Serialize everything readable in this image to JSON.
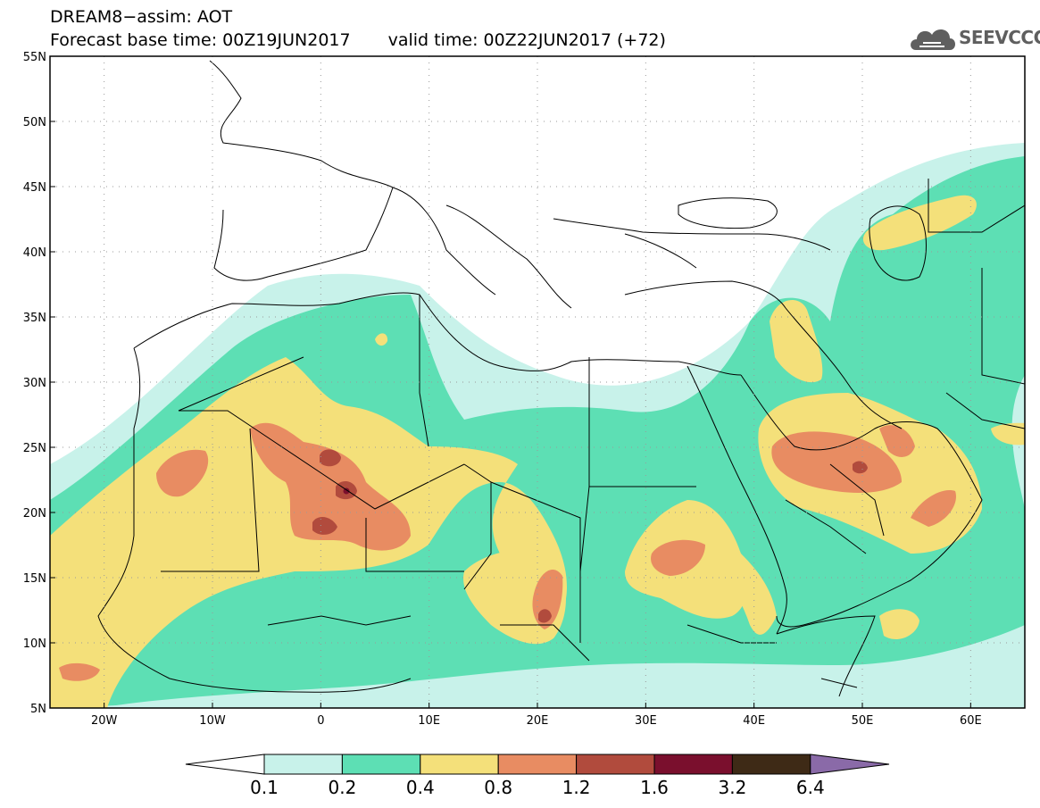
{
  "title": {
    "line1": "DREAM8−assim: AOT",
    "base_time": "Forecast base time: 00Z19JUN2017",
    "valid_time": "valid time: 00Z22JUN2017 (+72)"
  },
  "logo": {
    "text": "SEEVCCC",
    "icon": "cloud-logo-icon"
  },
  "map": {
    "lon_range": [
      -25,
      65
    ],
    "lat_range": [
      5,
      55
    ],
    "lon_ticks": [
      "20W",
      "10W",
      "0",
      "10E",
      "20E",
      "30E",
      "40E",
      "50E",
      "60E"
    ],
    "lat_ticks": [
      "5N",
      "10N",
      "15N",
      "20N",
      "25N",
      "30N",
      "35N",
      "40N",
      "45N",
      "50N",
      "55N"
    ],
    "gridlines": "dotted"
  },
  "colorbar": {
    "labels": [
      "0.1",
      "0.2",
      "0.4",
      "0.8",
      "1.2",
      "1.6",
      "3.2",
      "6.4"
    ],
    "colors": [
      "#ffffff",
      "#c8f2ea",
      "#5ddfb4",
      "#f4e07a",
      "#e88c62",
      "#b14b3d",
      "#7a0f2d",
      "#3e2a16",
      "#8a6aa8"
    ]
  }
}
